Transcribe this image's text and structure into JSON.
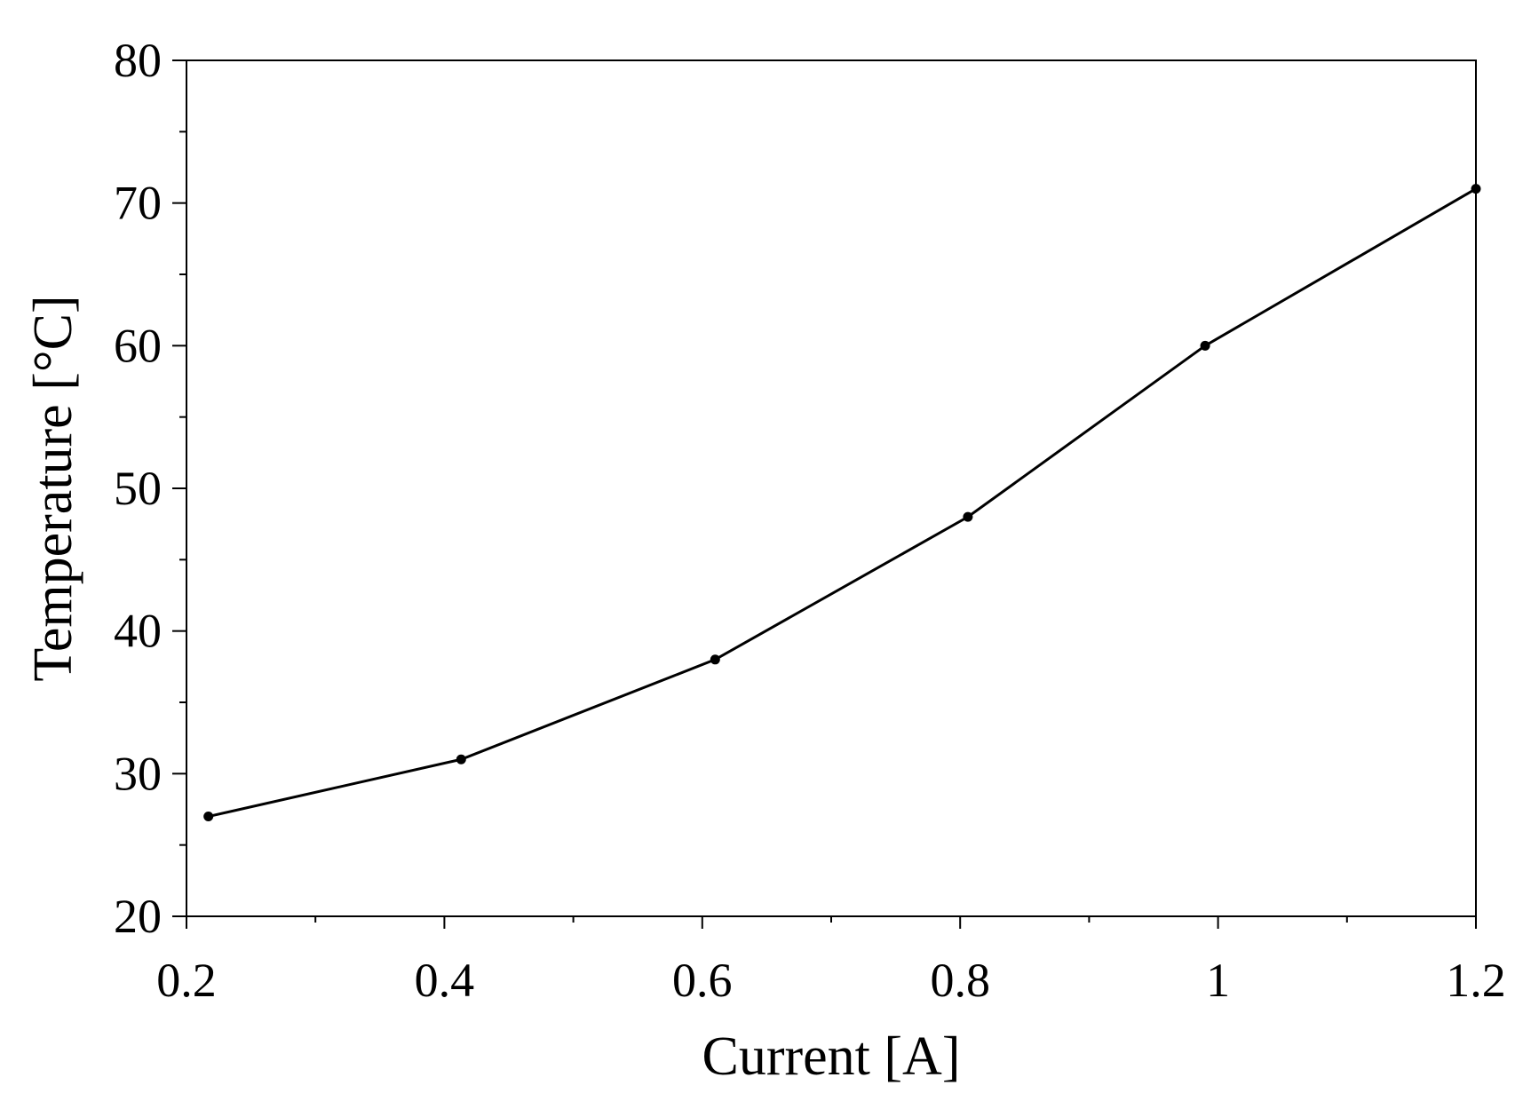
{
  "chart_data": {
    "type": "line",
    "xlabel": "Current [A]",
    "ylabel": "Temperature [°C]",
    "xlim": [
      0.2,
      1.2
    ],
    "ylim": [
      20,
      80
    ],
    "x_ticks": [
      0.2,
      0.4,
      0.6,
      0.8,
      1.0,
      1.2
    ],
    "x_tick_labels": [
      "0.2",
      "0.4",
      "0.6",
      "0.8",
      "1",
      "1.2"
    ],
    "x_minor_step": 0.1,
    "y_ticks": [
      20,
      30,
      40,
      50,
      60,
      70,
      80
    ],
    "y_tick_labels": [
      "20",
      "30",
      "40",
      "50",
      "60",
      "70",
      "80"
    ],
    "y_minor_step": 5,
    "grid": false,
    "series": [
      {
        "x": [
          0.217,
          0.413,
          0.61,
          0.806,
          0.99,
          1.2
        ],
        "y": [
          27,
          31,
          38,
          48,
          60,
          71
        ],
        "color": "#000000",
        "marker": "circle"
      }
    ]
  }
}
